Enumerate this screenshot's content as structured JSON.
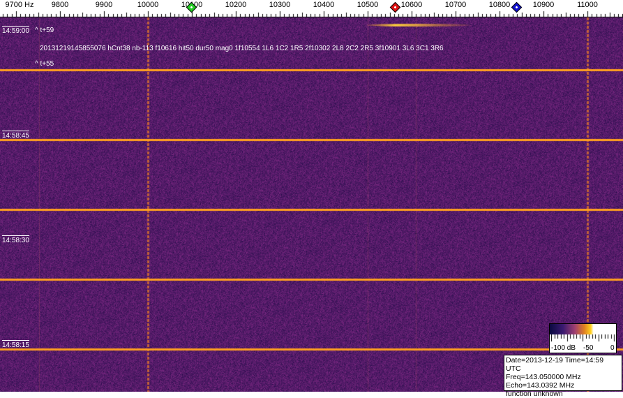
{
  "ruler": {
    "labels": [
      "9700 Hz",
      "9800",
      "9900",
      "10000",
      "10100",
      "10200",
      "10300",
      "10400",
      "10500",
      "10600",
      "10700",
      "10800",
      "10900",
      "11000"
    ]
  },
  "markers": [
    {
      "color": "#22cc22",
      "name": "green"
    },
    {
      "color": "#dd1111",
      "name": "red"
    },
    {
      "color": "#1111cc",
      "name": "blue"
    }
  ],
  "spectrogram": {
    "time_labels": [
      "14:59:00",
      "14:58:45",
      "14:58:30",
      "14:58:15"
    ],
    "annotation_top": "^ t+59",
    "annotation_bottom": "^ t+55",
    "detection": "20131219145855076 hCnt38 nb-113 f10616 hit50 dur50 mag0 1f10554 1L6 1C2 1R5 2f10302 2L8 2C2 2R5 3f10901 3L6 3C1 3R6",
    "background_color": "#3a1a6e",
    "line_color": "#ffa020"
  },
  "colorbar": {
    "min_label": "-100 dB",
    "mid_label": "-50",
    "max_label": "0"
  },
  "info": {
    "date_time": "Date=2013-12-19 Time=14:59 UTC",
    "freq": "Freq=143.050000 MHz",
    "echo": "Echo=143.0392 MHz",
    "function": "function unknown"
  }
}
